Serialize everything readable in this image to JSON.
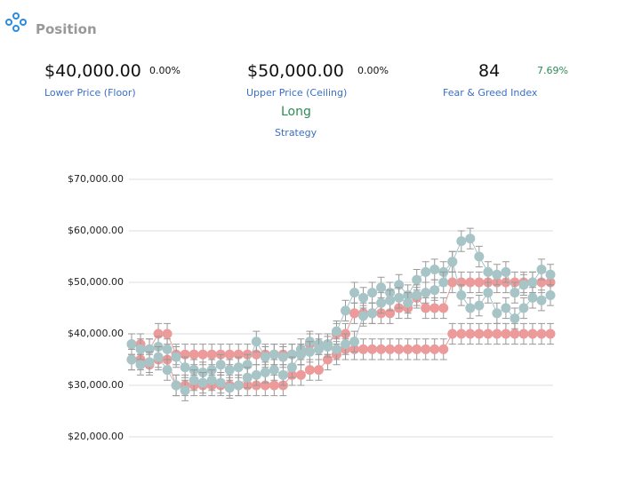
{
  "header": {
    "title": "Position"
  },
  "stats": [
    {
      "value": "$40,000.00",
      "change": "0.00%",
      "label": "Lower Price (Floor)"
    },
    {
      "value": "$50,000.00",
      "change": "0.00%",
      "label": "Upper Price (Ceiling)"
    },
    {
      "value": "84",
      "change": "7.69%",
      "label": "Fear & Greed Index"
    }
  ],
  "strategy": {
    "value": "Long",
    "label": "Strategy"
  },
  "chart_data": {
    "type": "errorbar",
    "ylim": [
      20000,
      70000
    ],
    "yticks": [
      {
        "value": 20000,
        "label": "$20,000.00"
      },
      {
        "value": 30000,
        "label": "$30,000.00"
      },
      {
        "value": 40000,
        "label": "$40,000.00"
      },
      {
        "value": 50000,
        "label": "$50,000.00"
      },
      {
        "value": 60000,
        "label": "$60,000.00"
      },
      {
        "value": 70000,
        "label": "$70,000.00"
      }
    ],
    "grid": true,
    "series": [
      {
        "color": "#ec9a9a",
        "error": 2000,
        "values": [
          35000,
          35000,
          34000,
          35000,
          35000,
          30000,
          30000,
          30000,
          30000,
          30000,
          30000,
          30000,
          30000,
          30000,
          30000,
          30000,
          30000,
          30000,
          32000,
          32000,
          33000,
          33000,
          35000,
          36000,
          37000,
          37000,
          37000,
          37000,
          37000,
          37000,
          37000,
          37000,
          37000,
          37000,
          37000,
          37000,
          40000,
          40000,
          40000,
          40000,
          40000,
          40000,
          40000,
          40000,
          40000,
          40000,
          40000,
          40000
        ]
      },
      {
        "color": "#ec9a9a",
        "error": 2000,
        "values": [
          38000,
          38000,
          37000,
          40000,
          40000,
          36000,
          36000,
          36000,
          36000,
          36000,
          36000,
          36000,
          36000,
          36000,
          36000,
          36000,
          36000,
          36000,
          36000,
          36000,
          38000,
          38000,
          38000,
          40000,
          40000,
          44000,
          44000,
          44000,
          44000,
          44000,
          45000,
          45000,
          47000,
          45000,
          45000,
          45000,
          50000,
          50000,
          50000,
          50000,
          50000,
          50000,
          50000,
          50000,
          50000,
          50000,
          50000,
          50000
        ]
      },
      {
        "color": "#a7c4c7",
        "error": 2000,
        "values": [
          38000,
          37000,
          37000,
          37500,
          37000,
          35500,
          33500,
          33000,
          32500,
          33000,
          34000,
          33000,
          33500,
          34000,
          38500,
          35500,
          36000,
          35500,
          36000,
          37000,
          38500,
          38000,
          38000,
          40500,
          44500,
          48000,
          47000,
          48000,
          49000,
          48000,
          49500,
          47500,
          50500,
          52000,
          52500,
          52000,
          54000,
          58000,
          58500,
          55000,
          52000,
          51500,
          52000,
          48000,
          49500,
          50000,
          52500,
          51500
        ]
      },
      {
        "color": "#a7c4c7",
        "error": 2000,
        "values": [
          35000,
          34000,
          34500,
          35500,
          33000,
          30000,
          29000,
          31000,
          30500,
          31000,
          30500,
          29500,
          30000,
          31500,
          32000,
          32500,
          33000,
          32000,
          33500,
          36000,
          36500,
          37000,
          37500,
          37000,
          38000,
          38500,
          43500,
          44000,
          46000,
          46500,
          47000,
          46000,
          47500,
          48000,
          48500,
          50000,
          54000,
          47500,
          45000,
          45500,
          48000,
          44000,
          45000,
          43000,
          45000,
          47000,
          46500,
          47500
        ]
      }
    ]
  }
}
